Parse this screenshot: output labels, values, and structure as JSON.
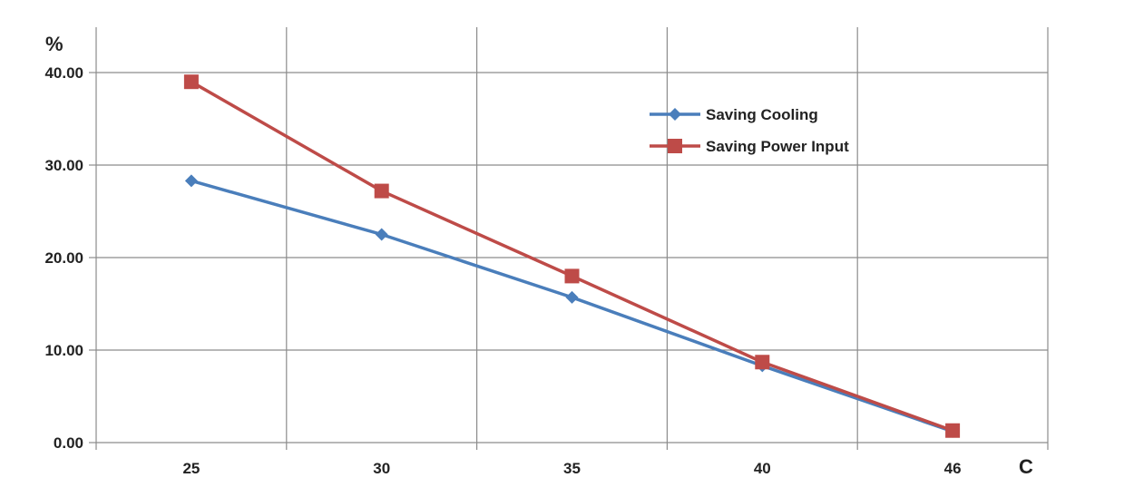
{
  "chart_data": {
    "type": "line",
    "categories": [
      "25",
      "30",
      "35",
      "40",
      "46"
    ],
    "series": [
      {
        "name": "Saving Cooling",
        "values": [
          28.3,
          22.5,
          15.7,
          8.3,
          1.2
        ],
        "color": "#4a7ebb",
        "marker": "diamond"
      },
      {
        "name": "Saving Power Input",
        "values": [
          39.0,
          27.2,
          18.0,
          8.7,
          1.3
        ],
        "color": "#be4b48",
        "marker": "square"
      }
    ],
    "title": "",
    "xlabel": "C",
    "ylabel": "%",
    "ylim": [
      0,
      40
    ],
    "yticks": [
      "0.00",
      "10.00",
      "20.00",
      "30.00",
      "40.00"
    ],
    "grid": true,
    "legend_position": "top-right"
  }
}
